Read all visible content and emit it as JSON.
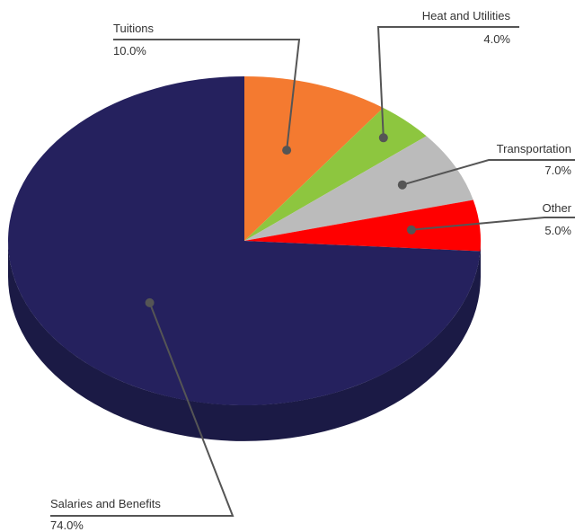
{
  "chart_data": {
    "type": "pie",
    "style": "3d",
    "slices": [
      {
        "label": "Tuitions",
        "value": 10.0,
        "display": "10.0%",
        "color": "#F47A30"
      },
      {
        "label": "Heat and Utilities",
        "value": 4.0,
        "display": "4.0%",
        "color": "#8DC63F"
      },
      {
        "label": "Transportation",
        "value": 7.0,
        "display": "7.0%",
        "color": "#BBBBBB"
      },
      {
        "label": "Other",
        "value": 5.0,
        "display": "5.0%",
        "color": "#FF0000"
      },
      {
        "label": "Salaries and Benefits",
        "value": 74.0,
        "display": "74.0%",
        "color": "#25215E"
      }
    ],
    "side_color": "#1B1A45",
    "leader_color": "#555555"
  }
}
